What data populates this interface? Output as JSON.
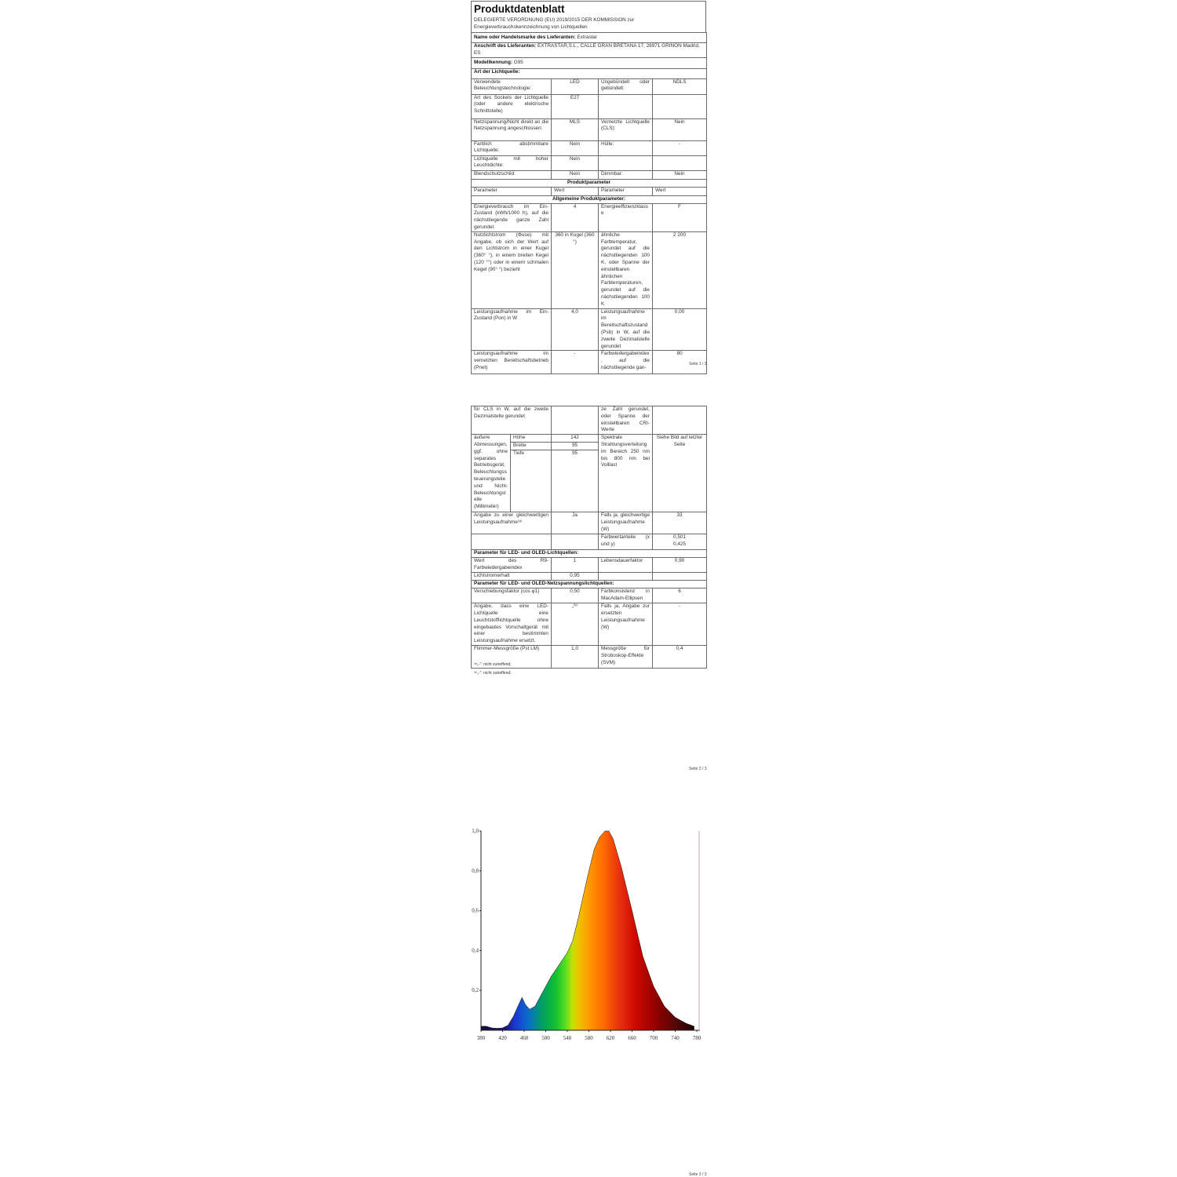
{
  "document": {
    "title": "Produktdatenblatt",
    "regulation": "DELEGIERTE VERORDNUNG (EU) 2019/2015 DER KOMMISSION zur Energieverbrauchskennzeichnung von Lichtquellen"
  },
  "page1": {
    "rows": [
      {
        "type": "labeled",
        "label": "Name oder Handelsmarke des Lieferanten:",
        "value": "Extrastar"
      },
      {
        "type": "labeled",
        "label": "Anschrift des Lieferanten:",
        "value": "EXTRASTAR,S.L., CALLE GRAN BRETAÑA 17, 28971 GRIÑÓN Madrid, ES"
      },
      {
        "type": "labeled",
        "label": "Modellkennung:",
        "value": "G95"
      },
      {
        "type": "bold",
        "text": "Art der Lichtquelle:"
      },
      {
        "type": "cells",
        "cells": [
          "Verwendete Beleuchtungstechnologie:",
          "LED",
          "Ungebündelt oder gebündelt:",
          "NDLS"
        ]
      },
      {
        "type": "cells",
        "cells": [
          "Art des Sockels der Lichtquelle (oder andere elektrische Schnittstelle)",
          "E27",
          "",
          ""
        ]
      },
      {
        "type": "cells",
        "cells": [
          "Netzspannung/Nicht direkt an die Netzspannung angeschlossen:",
          "MLS",
          "Vernetzte Lichtquelle (CLS):",
          "Nein"
        ]
      },
      {
        "type": "cells",
        "cells": [
          "Farblich abstimmbare Lichtquelle:",
          "Nein",
          "Hülle:",
          "-"
        ]
      },
      {
        "type": "cells",
        "cells": [
          "Lichtquelle mit hoher Leuchtdichte:",
          "Nein",
          "",
          ""
        ]
      },
      {
        "type": "cells",
        "cells": [
          "Blendschutzschild:",
          "Nein",
          "Dimmbar:",
          "Nein"
        ]
      },
      {
        "type": "cbold",
        "text": "Produktparameter"
      },
      {
        "type": "header",
        "cells": [
          "Parameter",
          "Wert",
          "Parameter",
          "Wert"
        ]
      },
      {
        "type": "cbold",
        "text": "Allgemeine Produktparameter:"
      },
      {
        "type": "cells",
        "cells": [
          "Energieverbrauch im Ein-Zustand (kWh/1000 h), auf die nächstliegende ganze Zahl gerundet",
          "4",
          "Energieeffizienzklasse",
          "F"
        ]
      },
      {
        "type": "cells",
        "cells": [
          "Nutzlichtstrom (Φuse) mit Angabe, ob sich der Wert auf den Lichtstrom in einer Kugel (360° °), in einem breiten Kegel (120 °°) oder in einem schmalen Kegel (90° °) bezieht",
          "360 in Kugel (360 °)",
          "ähnliche Farbtemperatur, gerundet auf die nächstliegenden 100 K, oder Spanne der einstellbaren ähnlichen Farbtemperaturen, gerundet auf die nächstliegenden 100 K",
          "2 200"
        ]
      },
      {
        "type": "cells",
        "cells": [
          "Leistungsaufnahme im Ein-Zustand (Pon) in W",
          "4,0",
          "Leistungsaufnahme im Bereitschaftszustand (Psb) in W, auf die zweite Dezimalstelle gerundet",
          "0,00"
        ]
      },
      {
        "type": "cells",
        "cells": [
          "Leistungsaufnahme im vernetzten Bereitschaftsbetrieb (Pnet)",
          "-",
          "Farbwiedergabeindex, auf die nächstliegende gan-",
          "80"
        ]
      }
    ],
    "page_number": "Seite 1 / 3"
  },
  "page2": {
    "rows": [
      {
        "type": "cells",
        "cells": [
          "für CLS in W, auf die zweite Dezimalstelle gerundet",
          "",
          "ze Zahl gerundet, oder Spanne der einstellbaren CRI-Werte",
          ""
        ]
      },
      {
        "type": "dims",
        "label": "äußere Abmessungen, ggf. ohne separates Betriebsgerät, Beleuchtungssteuerungsteile und Nicht-Beleuchtungsteile (Millimeter)",
        "items": [
          {
            "name": "Höhe",
            "value": "142"
          },
          {
            "name": "Breite",
            "value": "95"
          },
          {
            "name": "Tiefe",
            "value": "95"
          }
        ],
        "param": "Spektrale Strahlungsverteilung im Bereich 250 nm bis 800 nm bei Volllast",
        "value": "Siehe Bild auf letzter Seite"
      },
      {
        "type": "cells",
        "cells": [
          "Angabe zu einer gleichwertigen Leistungsaufnahme⁽ᵃ⁾",
          "Ja",
          "Falls ja, gleichwertige Leistungsaufnahme (W)",
          "33"
        ]
      },
      {
        "type": "cells",
        "cells": [
          "",
          "",
          "Farbwertanteile (x und y)",
          "0,501\n0,425"
        ]
      },
      {
        "type": "bold",
        "text": "Parameter für LED- und OLED-Lichtquellen:"
      },
      {
        "type": "cells",
        "cells": [
          "Wert des R9-Farbwiedergabeindex",
          "1",
          "Lebensdauerfaktor",
          "0,90"
        ]
      },
      {
        "type": "cells",
        "cells": [
          "Lichtstromerhalt",
          "0,95",
          "",
          ""
        ]
      },
      {
        "type": "bold",
        "text": "Parameter für LED- und OLED-Netzspannungslichtquellen:"
      },
      {
        "type": "cells",
        "cells": [
          "Verschiebungsfaktor (cos φ1)",
          "0,50",
          "Farbkonsistenz in MacAdam-Ellipsen",
          "6"
        ]
      },
      {
        "type": "cells",
        "cells": [
          "Angabe, dass eine LED-Lichtquelle eine Leuchtstofflichtquelle ohne eingebautes Vorschaltgerät mit einer bestimmten Leistungsaufnahme ersetzt.",
          "„⁽ᵇ⁾",
          "Falls ja, Angabe zur ersetzten Leistungsaufnahme (W)",
          "-"
        ]
      },
      {
        "type": "cells",
        "cells": [
          "Flimmer-Messgröße (Pst LM)",
          "1,0",
          "Messgröße für Stroboskop-Effekte (SVM)",
          "0,4"
        ]
      }
    ],
    "footnotes": [
      "⁽ᵃ⁾„-“: nicht zutreffend;",
      "⁽ᵇ⁾„-“: nicht zutreffend;"
    ],
    "page_number": "Seite 2 / 3"
  },
  "page3": {
    "page_number": "Seite 3 / 3"
  },
  "chart_data": {
    "type": "area",
    "title": "",
    "xlabel": "",
    "ylabel": "",
    "xlim": [
      380,
      780
    ],
    "ylim": [
      0,
      1.0
    ],
    "x_ticks": [
      "380",
      "420",
      "460",
      "500",
      "540",
      "580",
      "620",
      "660",
      "700",
      "740",
      "780"
    ],
    "y_ticks": [
      "0,2",
      "0,4",
      "0,6",
      "0,8",
      "1,0"
    ],
    "grid": false,
    "fill": "visible-spectrum gradient",
    "x": [
      380,
      390,
      400,
      410,
      420,
      430,
      440,
      450,
      456,
      462,
      470,
      480,
      490,
      500,
      510,
      520,
      530,
      540,
      550,
      560,
      570,
      580,
      590,
      600,
      610,
      617,
      625,
      640,
      660,
      680,
      700,
      720,
      740,
      760,
      775
    ],
    "y": [
      0.02,
      0.02,
      0.012,
      0.01,
      0.012,
      0.025,
      0.07,
      0.13,
      0.165,
      0.13,
      0.105,
      0.12,
      0.17,
      0.22,
      0.27,
      0.31,
      0.35,
      0.39,
      0.45,
      0.56,
      0.68,
      0.8,
      0.91,
      0.97,
      1.0,
      1.0,
      0.96,
      0.82,
      0.6,
      0.37,
      0.22,
      0.12,
      0.065,
      0.035,
      0.02
    ]
  }
}
